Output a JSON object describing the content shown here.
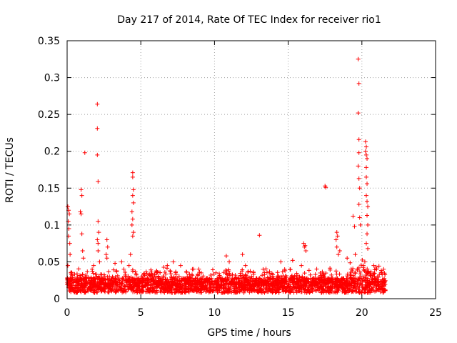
{
  "chart_data": {
    "type": "scatter",
    "title": "Day 217 of 2014, Rate Of TEC Index for receiver rio1",
    "xlabel": "GPS time / hours",
    "ylabel": "ROTI / TECUs",
    "xlim": [
      0,
      25
    ],
    "ylim": [
      0,
      0.35
    ],
    "x_ticks": [
      "0",
      "5",
      "10",
      "15",
      "20",
      "25"
    ],
    "y_ticks": [
      "0",
      "0.05",
      "0.1",
      "0.15",
      "0.2",
      "0.25",
      "0.3",
      "0.35"
    ],
    "x_tick_values": [
      0,
      5,
      10,
      15,
      20,
      25
    ],
    "y_tick_values": [
      0,
      0.05,
      0.1,
      0.15,
      0.2,
      0.25,
      0.3,
      0.35
    ],
    "grid": true,
    "marker": "+",
    "series": [
      {
        "name": "ROTI",
        "color": "#ff0000",
        "points": [
          [
            0.05,
            0.125
          ],
          [
            0.1,
            0.12
          ],
          [
            0.15,
            0.115
          ],
          [
            0.08,
            0.105
          ],
          [
            0.12,
            0.095
          ],
          [
            0.1,
            0.085
          ],
          [
            0.18,
            0.075
          ],
          [
            0.2,
            0.06
          ],
          [
            0.05,
            0.045
          ],
          [
            0.25,
            0.035
          ],
          [
            0.95,
            0.148
          ],
          [
            1.0,
            0.14
          ],
          [
            0.9,
            0.118
          ],
          [
            0.95,
            0.115
          ],
          [
            1.0,
            0.088
          ],
          [
            1.05,
            0.065
          ],
          [
            1.1,
            0.055
          ],
          [
            1.2,
            0.198
          ],
          [
            2.05,
            0.264
          ],
          [
            2.05,
            0.231
          ],
          [
            2.05,
            0.195
          ],
          [
            2.1,
            0.159
          ],
          [
            2.1,
            0.105
          ],
          [
            2.15,
            0.09
          ],
          [
            2.05,
            0.08
          ],
          [
            2.1,
            0.075
          ],
          [
            2.1,
            0.065
          ],
          [
            2.2,
            0.05
          ],
          [
            1.8,
            0.045
          ],
          [
            1.7,
            0.04
          ],
          [
            2.7,
            0.08
          ],
          [
            2.75,
            0.07
          ],
          [
            2.65,
            0.06
          ],
          [
            2.7,
            0.055
          ],
          [
            3.25,
            0.048
          ],
          [
            3.7,
            0.05
          ],
          [
            3.85,
            0.04
          ],
          [
            4.45,
            0.171
          ],
          [
            4.45,
            0.165
          ],
          [
            4.5,
            0.148
          ],
          [
            4.45,
            0.14
          ],
          [
            4.5,
            0.13
          ],
          [
            4.4,
            0.118
          ],
          [
            4.45,
            0.108
          ],
          [
            4.4,
            0.1
          ],
          [
            4.5,
            0.09
          ],
          [
            4.45,
            0.085
          ],
          [
            4.3,
            0.06
          ],
          [
            4.2,
            0.045
          ],
          [
            6.8,
            0.045
          ],
          [
            7.2,
            0.05
          ],
          [
            7.7,
            0.045
          ],
          [
            8.5,
            0.04
          ],
          [
            9.1,
            0.035
          ],
          [
            10.8,
            0.058
          ],
          [
            11.0,
            0.05
          ],
          [
            11.9,
            0.06
          ],
          [
            12.1,
            0.045
          ],
          [
            13.05,
            0.086
          ],
          [
            14.5,
            0.05
          ],
          [
            15.3,
            0.052
          ],
          [
            15.9,
            0.045
          ],
          [
            16.05,
            0.075
          ],
          [
            16.1,
            0.07
          ],
          [
            16.15,
            0.072
          ],
          [
            16.2,
            0.065
          ],
          [
            17.5,
            0.153
          ],
          [
            17.55,
            0.151
          ],
          [
            18.3,
            0.09
          ],
          [
            18.35,
            0.085
          ],
          [
            18.25,
            0.08
          ],
          [
            18.3,
            0.07
          ],
          [
            18.4,
            0.06
          ],
          [
            18.5,
            0.065
          ],
          [
            19.0,
            0.055
          ],
          [
            19.4,
            0.112
          ],
          [
            19.5,
            0.098
          ],
          [
            19.55,
            0.06
          ],
          [
            19.75,
            0.325
          ],
          [
            19.8,
            0.292
          ],
          [
            19.75,
            0.252
          ],
          [
            19.8,
            0.216
          ],
          [
            19.8,
            0.198
          ],
          [
            19.75,
            0.18
          ],
          [
            19.8,
            0.163
          ],
          [
            19.85,
            0.15
          ],
          [
            19.8,
            0.128
          ],
          [
            19.85,
            0.11
          ],
          [
            19.9,
            0.1
          ],
          [
            20.1,
            0.045
          ],
          [
            20.2,
            0.05
          ],
          [
            20.25,
            0.213
          ],
          [
            20.3,
            0.206
          ],
          [
            20.25,
            0.2
          ],
          [
            20.3,
            0.195
          ],
          [
            20.35,
            0.19
          ],
          [
            20.3,
            0.178
          ],
          [
            20.3,
            0.165
          ],
          [
            20.35,
            0.156
          ],
          [
            20.3,
            0.14
          ],
          [
            20.35,
            0.132
          ],
          [
            20.4,
            0.125
          ],
          [
            20.35,
            0.113
          ],
          [
            20.4,
            0.1
          ],
          [
            20.35,
            0.088
          ],
          [
            20.3,
            0.075
          ],
          [
            20.4,
            0.068
          ],
          [
            20.8,
            0.045
          ],
          [
            21.0,
            0.04
          ],
          [
            21.3,
            0.035
          ]
        ]
      }
    ]
  }
}
